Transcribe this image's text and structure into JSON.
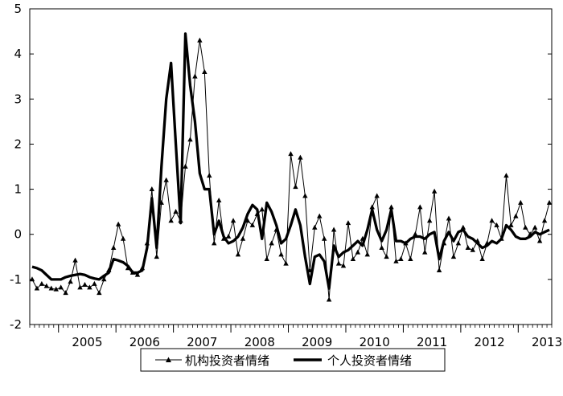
{
  "chart_data": {
    "type": "line",
    "title": "",
    "xlabel": "",
    "ylabel": "",
    "ylim": [
      -2,
      5
    ],
    "yticks": [
      -2,
      -1,
      0,
      1,
      2,
      3,
      4,
      5
    ],
    "x_tick_labels": [
      "2005",
      "2006",
      "2007",
      "2008",
      "2009",
      "2010",
      "2011",
      "2012",
      "2013"
    ],
    "x_start": "2004-07",
    "x_end": "2013-12",
    "frequency": "monthly",
    "grid": false,
    "legend_position": "bottom-center",
    "series": [
      {
        "name": "机构投资者情绪",
        "style": "thin line with triangle markers",
        "color": "#000000",
        "values": [
          -1.0,
          -1.2,
          -1.1,
          -1.15,
          -1.2,
          -1.22,
          -1.18,
          -1.3,
          -1.05,
          -0.58,
          -1.18,
          -1.12,
          -1.18,
          -1.1,
          -1.3,
          -1.0,
          -0.8,
          -0.3,
          0.22,
          -0.1,
          -0.75,
          -0.85,
          -0.9,
          -0.75,
          -0.2,
          1.0,
          -0.5,
          0.7,
          1.2,
          0.3,
          0.5,
          0.3,
          1.5,
          2.1,
          3.5,
          4.3,
          3.6,
          1.3,
          -0.2,
          0.75,
          -0.1,
          -0.05,
          0.3,
          -0.45,
          -0.1,
          0.3,
          0.2,
          0.45,
          0.55,
          -0.55,
          -0.2,
          0.1,
          -0.45,
          -0.65,
          1.78,
          1.05,
          1.7,
          0.85,
          -0.8,
          0.15,
          0.4,
          -0.1,
          -1.45,
          0.1,
          -0.65,
          -0.7,
          0.25,
          -0.55,
          -0.4,
          -0.1,
          -0.45,
          0.6,
          0.85,
          -0.3,
          -0.5,
          0.6,
          -0.6,
          -0.55,
          -0.2,
          -0.55,
          0.0,
          0.6,
          -0.4,
          0.3,
          0.95,
          -0.8,
          -0.2,
          0.35,
          -0.5,
          -0.2,
          0.15,
          -0.3,
          -0.35,
          -0.15,
          -0.55,
          -0.2,
          0.3,
          0.2,
          -0.1,
          1.3,
          0.2,
          0.4,
          0.7,
          0.15,
          0.0,
          0.15,
          -0.15,
          0.3,
          0.7
        ]
      },
      {
        "name": "个人投资者情绪",
        "style": "thick line",
        "color": "#000000",
        "values": [
          -0.72,
          -0.75,
          -0.8,
          -0.9,
          -1.0,
          -1.0,
          -1.0,
          -0.95,
          -0.92,
          -0.9,
          -0.88,
          -0.9,
          -0.95,
          -0.98,
          -1.0,
          -0.92,
          -0.85,
          -0.55,
          -0.58,
          -0.62,
          -0.7,
          -0.85,
          -0.85,
          -0.8,
          -0.3,
          0.8,
          -0.3,
          1.5,
          3.0,
          3.8,
          2.0,
          0.25,
          4.45,
          3.3,
          2.5,
          1.35,
          1.0,
          1.0,
          0.0,
          0.3,
          -0.05,
          -0.2,
          -0.15,
          -0.05,
          0.15,
          0.45,
          0.65,
          0.55,
          -0.1,
          0.7,
          0.5,
          0.2,
          -0.2,
          -0.1,
          0.2,
          0.55,
          0.2,
          -0.5,
          -1.1,
          -0.5,
          -0.45,
          -0.6,
          -1.2,
          -0.25,
          -0.5,
          -0.4,
          -0.35,
          -0.25,
          -0.15,
          -0.25,
          0.1,
          0.55,
          0.1,
          -0.15,
          0.1,
          0.55,
          -0.15,
          -0.15,
          -0.2,
          -0.1,
          -0.05,
          -0.05,
          -0.1,
          0.0,
          0.05,
          -0.55,
          -0.15,
          0.05,
          -0.15,
          0.05,
          0.1,
          -0.05,
          -0.1,
          -0.2,
          -0.3,
          -0.25,
          -0.15,
          -0.2,
          -0.1,
          0.2,
          0.1,
          -0.05,
          -0.1,
          -0.1,
          -0.05,
          0.05,
          0.0,
          0.05,
          0.1
        ]
      }
    ]
  }
}
